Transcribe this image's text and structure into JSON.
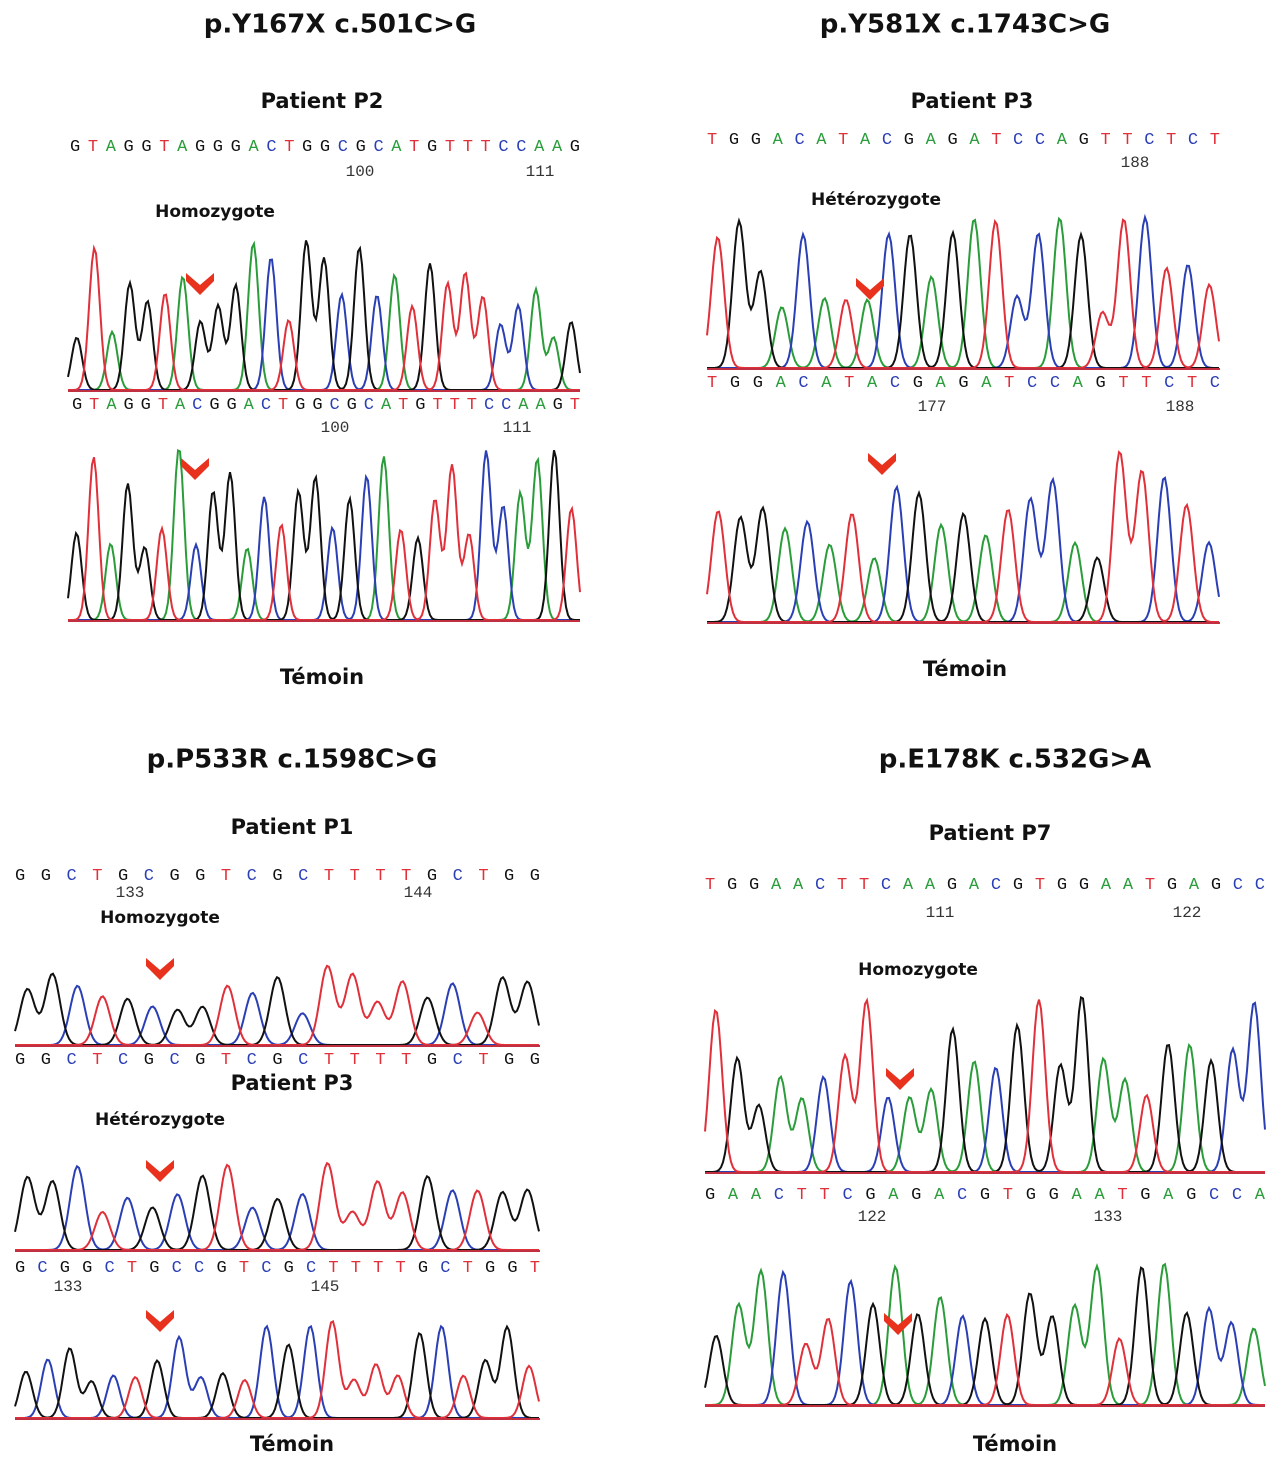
{
  "panels": [
    {
      "title": "p.Y167X  c.501C>G",
      "footer": "Témoin",
      "tracks": [
        {
          "patient": "Patient P2",
          "zygosity": "Homozygote",
          "sequence": "GTAGGTAGGGACTGGCGCATGTTTCCAAG",
          "positions": [
            100,
            111
          ]
        },
        {
          "sequence": "GTAGGTACGGACTGGCGCATGTTTCCAAGT",
          "positions": [
            100,
            111
          ]
        }
      ]
    },
    {
      "title": "p.Y581X  c.1743C>G",
      "footer": "Témoin",
      "tracks": [
        {
          "patient": "Patient P3",
          "zygosity": "Hétérozygote",
          "sequence": "TGGACATACGAGATCCAGTTCTCT",
          "positions": [
            188
          ]
        },
        {
          "sequence": "TGGACATACGAGATCCAGTTCTC",
          "positions": [
            177,
            188
          ]
        }
      ]
    },
    {
      "title": "p.P533R  c.1598C>G",
      "footer": "Témoin",
      "tracks": [
        {
          "patient": "Patient P1",
          "zygosity": "Homozygote",
          "sequence": "GGCTGCGGTCGCTTTTGCTGG",
          "positions": [
            133,
            144
          ]
        },
        {
          "patient": "Patient P3",
          "zygosity": "Hétérozygote",
          "sequence": "GGCTCGCGTCGCTTTTGCTGG",
          "positions": []
        },
        {
          "sequence": "GCGGCTGCCGTCGCTTTTGCTGGT",
          "positions": [
            133,
            145
          ]
        }
      ]
    },
    {
      "title": "p.E178K   c.532G>A",
      "footer": "Témoin",
      "tracks": [
        {
          "patient": "Patient P7",
          "zygosity": "Homozygote",
          "sequence": "TGGAACTTCAAGACGTGGAATGAGCC",
          "positions": [
            111,
            122
          ]
        },
        {
          "sequence": "GAACTTCGAGACGTGGAATGAGCCA",
          "positions": [
            122,
            133
          ]
        }
      ]
    }
  ]
}
